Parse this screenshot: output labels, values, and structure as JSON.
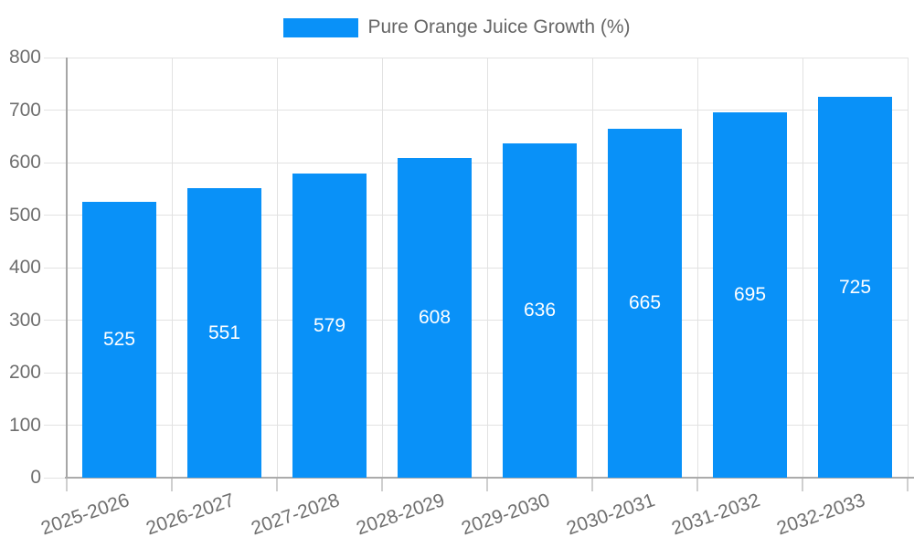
{
  "chart_data": {
    "type": "bar",
    "title": "",
    "legend": {
      "label": "Pure Orange Juice Growth (%)",
      "position": "top"
    },
    "categories": [
      "2025-2026",
      "2026-2027",
      "2027-2028",
      "2028-2029",
      "2029-2030",
      "2030-2031",
      "2031-2032",
      "2032-2033"
    ],
    "series": [
      {
        "name": "Pure Orange Juice Growth (%)",
        "values": [
          525,
          551,
          579,
          608,
          636,
          665,
          695,
          725
        ]
      }
    ],
    "value_labels_shown": true,
    "xlabel": "",
    "ylabel": "",
    "ylim": [
      0,
      800
    ],
    "yticks": [
      0,
      100,
      200,
      300,
      400,
      500,
      600,
      700,
      800
    ],
    "grid": true,
    "x_label_rotation_deg": -19,
    "colors": {
      "bar": "#0991f8",
      "value_label": "#ffffff",
      "gridline": "#e2e2e2",
      "tick": "#cfcfcf",
      "y_axis_line": "#a6a6a6",
      "x_axis_line": "#ababab",
      "axis_label": "#6f6f6f",
      "legend_text": "#666666"
    }
  }
}
